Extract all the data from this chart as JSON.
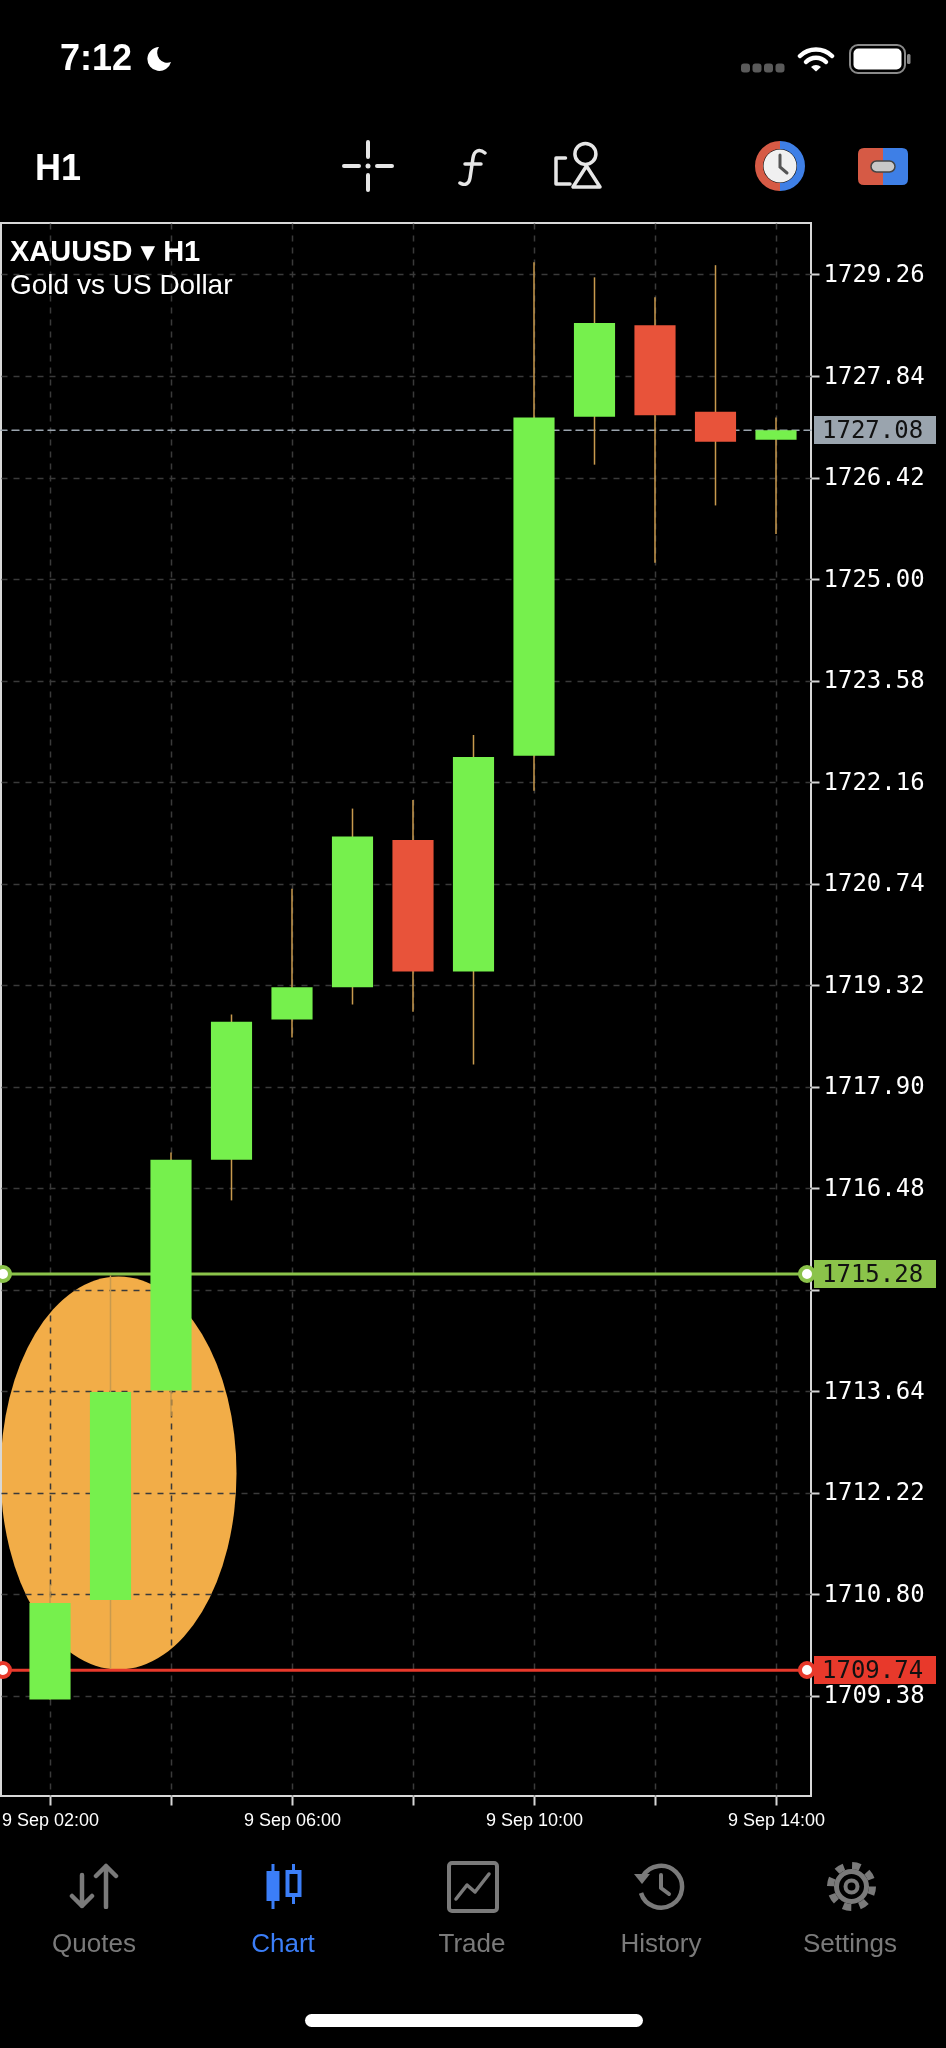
{
  "chart_data": {
    "type": "candlestick",
    "title": "XAUUSD ▾ H1",
    "subtitle": "Gold vs US Dollar",
    "categories": [
      "9 Sep 02:00",
      null,
      null,
      null,
      "9 Sep 06:00",
      null,
      null,
      null,
      "9 Sep 10:00",
      null,
      null,
      null,
      "9 Sep 14:00"
    ],
    "ohlc": [
      [
        1709.33,
        1710.94,
        1709.33,
        1710.68
      ],
      [
        1710.72,
        1715.26,
        1709.76,
        1713.63
      ],
      [
        1713.65,
        1716.98,
        1713.29,
        1716.88
      ],
      [
        1716.88,
        1718.91,
        1716.31,
        1718.81
      ],
      [
        1718.84,
        1720.67,
        1718.59,
        1719.29
      ],
      [
        1719.29,
        1721.79,
        1719.05,
        1721.4
      ],
      [
        1721.35,
        1721.91,
        1718.95,
        1719.51
      ],
      [
        1719.51,
        1722.82,
        1718.21,
        1722.51
      ],
      [
        1722.53,
        1729.43,
        1722.04,
        1727.26
      ],
      [
        1727.27,
        1729.22,
        1726.6,
        1728.58
      ],
      [
        1728.55,
        1728.94,
        1725.23,
        1727.29
      ],
      [
        1727.34,
        1729.39,
        1726.03,
        1726.92
      ],
      [
        1726.95,
        1727.26,
        1725.63,
        1727.08
      ]
    ],
    "colors": [
      "#76f04d",
      "#76f04d",
      "#76f04d",
      "#76f04d",
      "#76f04d",
      "#76f04d",
      "#e8533a",
      "#76f04d",
      "#76f04d",
      "#76f04d",
      "#e8533a",
      "#e8533a",
      "#76f04d"
    ],
    "ylim": [
      1707.98,
      1729.98
    ],
    "yticks": [
      1709.38,
      {
        "value": 1710.8,
        "label": "1710.80"
      },
      1712.22,
      1713.64,
      {
        "value": 1715.06,
        "label": null
      },
      1716.48,
      {
        "value": 1717.9,
        "label": "1717.90"
      },
      1719.32,
      1720.74,
      1722.16,
      1723.58,
      {
        "value": 1725,
        "label": "1725.00"
      },
      1726.42,
      1727.84,
      1729.26
    ],
    "grid": true,
    "ref_lines": [
      {
        "axis": "y",
        "value": 1727.08,
        "label": "1727.08",
        "color": "#9aa4ae",
        "line_style": "dashed"
      },
      {
        "axis": "y",
        "value": 1715.28,
        "label": "1715.28",
        "color": "#8bc34a"
      },
      {
        "axis": "y",
        "value": 1709.74,
        "label": "1709.74",
        "color": "#e8392b"
      }
    ],
    "annotations": [
      "7:12",
      "H1",
      "Quotes",
      "Chart",
      "Trade",
      "History",
      "Settings"
    ]
  }
}
